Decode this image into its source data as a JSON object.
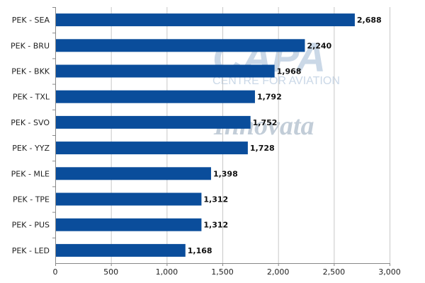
{
  "chart_data": {
    "type": "bar",
    "orientation": "horizontal",
    "categories": [
      "PEK - SEA",
      "PEK - BRU",
      "PEK - BKK",
      "PEK - TXL",
      "PEK - SVO",
      "PEK - YYZ",
      "PEK - MLE",
      "PEK - TPE",
      "PEK - PUS",
      "PEK - LED"
    ],
    "values": [
      2688,
      2240,
      1968,
      1792,
      1752,
      1728,
      1398,
      1312,
      1312,
      1168
    ],
    "value_labels": [
      "2,688",
      "2,240",
      "1,968",
      "1,792",
      "1,752",
      "1,728",
      "1,398",
      "1,312",
      "1,312",
      "1,168"
    ],
    "xlim": [
      0,
      3000
    ],
    "xticks": [
      0,
      500,
      1000,
      1500,
      2000,
      2500,
      3000
    ],
    "xtick_labels": [
      "0",
      "500",
      "1,000",
      "1,500",
      "2,000",
      "2,500",
      "3,000"
    ],
    "grid": "vertical",
    "bar_color": "#0a4d9b",
    "grid_color": "#c8c8c8"
  },
  "watermark": {
    "main": "CAPA",
    "sub": "CENTRE FOR AVIATION",
    "secondary": "Innovata"
  }
}
